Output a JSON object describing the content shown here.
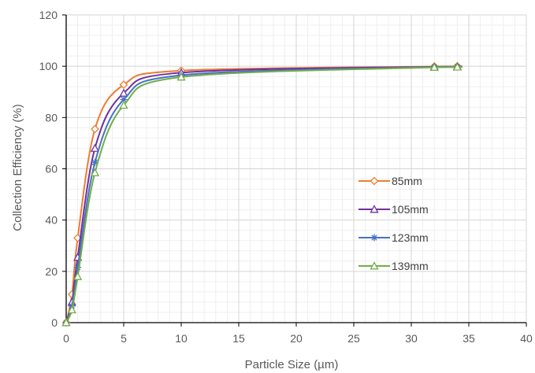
{
  "chart_data": {
    "type": "line",
    "title": "",
    "xlabel": "Particle Size (µm)",
    "ylabel": "Collection Efficiency (%)",
    "xlim": [
      0,
      40
    ],
    "ylim": [
      0,
      120
    ],
    "xticks": [
      0,
      5,
      10,
      15,
      20,
      25,
      30,
      35,
      40
    ],
    "yticks": [
      0,
      20,
      40,
      60,
      80,
      100,
      120
    ],
    "grid": true,
    "minor_grid": true,
    "legend_position": "right-center",
    "series": [
      {
        "name": "85mm",
        "color": "#ED7D31",
        "marker": "diamond-icon",
        "x": [
          0,
          0.5,
          1,
          2.5,
          5,
          10,
          32,
          34
        ],
        "y": [
          0,
          11,
          33,
          75.5,
          92.8,
          98.3,
          99.9,
          100
        ]
      },
      {
        "name": "105mm",
        "color": "#7030A0",
        "marker": "triangle-icon",
        "x": [
          0,
          0.5,
          1,
          2.5,
          5,
          10,
          32,
          34
        ],
        "y": [
          0,
          8,
          25.5,
          68,
          89.5,
          97.5,
          99.8,
          99.9
        ]
      },
      {
        "name": "123mm",
        "color": "#4472C4",
        "marker": "asterisk-icon",
        "x": [
          0,
          0.5,
          1,
          2.5,
          5,
          10,
          32,
          34
        ],
        "y": [
          0,
          6.5,
          21.5,
          62.5,
          87,
          96.5,
          99.7,
          99.8
        ]
      },
      {
        "name": "139mm",
        "color": "#70AD47",
        "marker": "triangle-icon",
        "x": [
          0,
          0.5,
          1,
          2.5,
          5,
          10,
          32,
          34
        ],
        "y": [
          0,
          5,
          18,
          58.5,
          84.8,
          95.8,
          99.6,
          99.7
        ]
      }
    ]
  }
}
